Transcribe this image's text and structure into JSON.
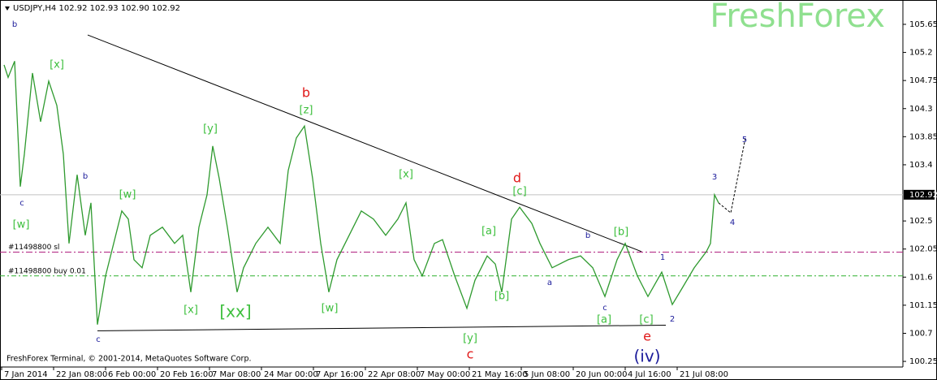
{
  "chart_data": {
    "type": "line",
    "title": "USDJPY,H4  102.92 102.93 102.90 102.92",
    "watermark": "FreshForex",
    "footer": "FreshForex Terminal, © 2001-2014, MetaQuotes Software Corp.",
    "xlim": [
      0,
      1112
    ],
    "ylim": [
      100.16,
      106.04
    ],
    "xticks": [
      {
        "value": 2,
        "label": "7 Jan 2014"
      },
      {
        "value": 66,
        "label": "22 Jan 08:00"
      },
      {
        "value": 130,
        "label": "6 Feb 00:00"
      },
      {
        "value": 194,
        "label": "20 Feb 16:00"
      },
      {
        "value": 258,
        "label": "7 Mar 08:00"
      },
      {
        "value": 322,
        "label": "24 Mar 00:00"
      },
      {
        "value": 386,
        "label": "7 Apr 16:00"
      },
      {
        "value": 450,
        "label": "22 Apr 08:00"
      },
      {
        "value": 514,
        "label": "7 May 00:00"
      },
      {
        "value": 578,
        "label": "21 May 16:00"
      },
      {
        "value": 642,
        "label": "5 Jun 08:00"
      },
      {
        "value": 706,
        "label": "20 Jun 00:00"
      },
      {
        "value": 770,
        "label": "4 Jul 16:00"
      },
      {
        "value": 834,
        "label": "21 Jul 08:00"
      }
    ],
    "yticks": [
      105.65,
      105.2,
      104.75,
      104.3,
      103.85,
      103.4,
      102.5,
      102.05,
      101.6,
      101.15,
      100.7,
      100.25
    ],
    "x": [
      5,
      10,
      18,
      25,
      30,
      40,
      50,
      60,
      70,
      78,
      85,
      95,
      105,
      112,
      120,
      130,
      140,
      150,
      158,
      165,
      175,
      185,
      200,
      215,
      225,
      235,
      245,
      255,
      262,
      270,
      280,
      292,
      300,
      315,
      330,
      345,
      355,
      365,
      375,
      385,
      395,
      405,
      415,
      430,
      445,
      460,
      475,
      490,
      500,
      510,
      520,
      535,
      545,
      560,
      575,
      585,
      600,
      610,
      618,
      630,
      640,
      655,
      665,
      680,
      700,
      715,
      730,
      745,
      760,
      770,
      785,
      798,
      815,
      828,
      840,
      855,
      870,
      875,
      880,
      885
    ],
    "series": [
      {
        "color": "#2f9a2f",
        "values": [
          105.0,
          104.8,
          105.06,
          103.05,
          103.57,
          104.87,
          104.09,
          104.74,
          104.35,
          103.57,
          102.14,
          103.24,
          102.27,
          102.79,
          100.84,
          101.62,
          102.14,
          102.66,
          102.53,
          101.88,
          101.75,
          102.27,
          102.4,
          102.14,
          102.27,
          101.36,
          102.4,
          102.92,
          103.7,
          103.18,
          102.4,
          101.36,
          101.75,
          102.14,
          102.4,
          102.14,
          103.31,
          103.83,
          104.02,
          103.18,
          102.14,
          101.36,
          101.88,
          102.27,
          102.66,
          102.53,
          102.27,
          102.53,
          102.79,
          101.88,
          101.62,
          102.14,
          102.2,
          101.62,
          101.1,
          101.55,
          101.94,
          101.81,
          101.36,
          102.53,
          102.72,
          102.46,
          102.14,
          101.75,
          101.88,
          101.94,
          101.75,
          101.29,
          101.88,
          102.14,
          101.62,
          101.29,
          101.68,
          101.16,
          101.42,
          101.75,
          102.01,
          102.14,
          102.92,
          102.79
        ]
      }
    ],
    "hlines": [
      {
        "label": "102.92",
        "value": 102.92,
        "color": "#c0c0c0"
      },
      {
        "label": "#11498800 sl",
        "value": 102.0,
        "color": "#b02080"
      },
      {
        "label": "#11498800 buy 0.01",
        "value": 101.62,
        "color": "#2fb02f"
      }
    ],
    "trendlines": [
      {
        "x": [
          108,
          790
        ],
        "values": [
          105.48,
          102.01
        ]
      },
      {
        "x": [
          120,
          820
        ],
        "values": [
          100.74,
          100.83
        ]
      }
    ],
    "projection": {
      "x": [
        885,
        900,
        918
      ],
      "values": [
        102.79,
        102.63,
        103.83
      ]
    },
    "annotations": [
      {
        "text": "b",
        "color": "#1a1a9a"
      },
      {
        "text": "[x]",
        "color": "#3cbf3c"
      },
      {
        "text": "c",
        "color": "#1a1a9a"
      },
      {
        "text": "[w]",
        "color": "#3cbf3c"
      },
      {
        "text": "b",
        "color": "#1a1a9a"
      },
      {
        "text": "c",
        "color": "#1a1a9a"
      },
      {
        "text": "[w]",
        "color": "#3cbf3c"
      },
      {
        "text": "[x]",
        "color": "#3cbf3c"
      },
      {
        "text": "[y]",
        "color": "#3cbf3c"
      },
      {
        "text": "[xx]",
        "color": "#3cbf3c"
      },
      {
        "text": "b",
        "color": "#e01818"
      },
      {
        "text": "[z]",
        "color": "#3cbf3c"
      },
      {
        "text": "[w]",
        "color": "#3cbf3c"
      },
      {
        "text": "[x]",
        "color": "#3cbf3c"
      },
      {
        "text": "d",
        "color": "#e01818"
      },
      {
        "text": "[c]",
        "color": "#3cbf3c"
      },
      {
        "text": "[a]",
        "color": "#3cbf3c"
      },
      {
        "text": "[b]",
        "color": "#3cbf3c"
      },
      {
        "text": "a",
        "color": "#1a1a9a"
      },
      {
        "text": "b",
        "color": "#1a1a9a"
      },
      {
        "text": "[b]",
        "color": "#3cbf3c"
      },
      {
        "text": "c",
        "color": "#1a1a9a"
      },
      {
        "text": "[a]",
        "color": "#3cbf3c"
      },
      {
        "text": "[c]",
        "color": "#3cbf3c"
      },
      {
        "text": "e",
        "color": "#e01818"
      },
      {
        "text": "1",
        "color": "#1a1a9a"
      },
      {
        "text": "2",
        "color": "#1a1a9a"
      },
      {
        "text": "3",
        "color": "#1a1a9a"
      },
      {
        "text": "4",
        "color": "#1a1a9a"
      },
      {
        "text": "5",
        "color": "#1a1a9a"
      },
      {
        "text": "[y]",
        "color": "#3cbf3c"
      },
      {
        "text": "c",
        "color": "#e01818"
      },
      {
        "text": "(iv)",
        "color": "#1a1a9a"
      }
    ]
  }
}
